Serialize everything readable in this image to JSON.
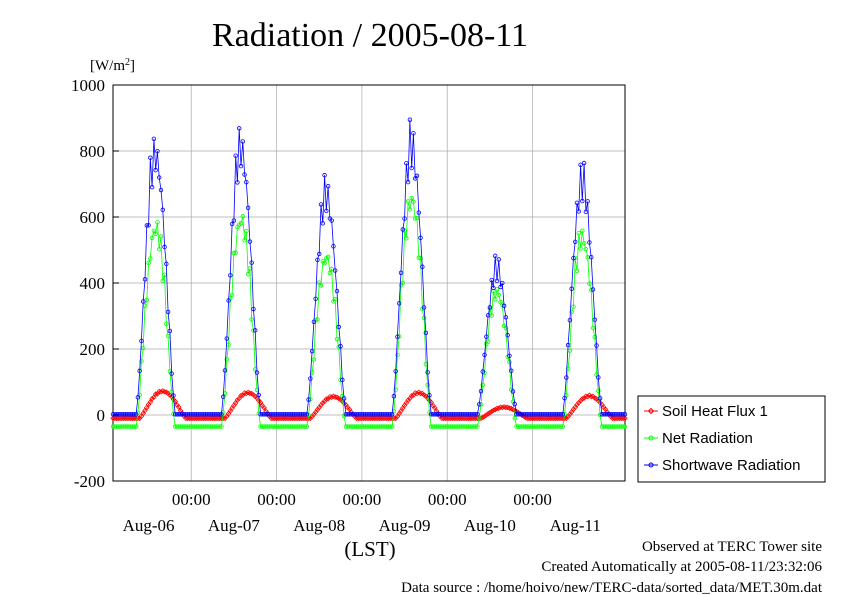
{
  "chart_data": {
    "type": "line",
    "title": "Radiation / 2005-08-11",
    "ylabel_unit_base": "[W/m",
    "ylabel_unit_sup": "2",
    "ylabel_unit_end": "]",
    "xlabel": "(LST)",
    "ylim": [
      -200,
      1000
    ],
    "yticks": [
      -200,
      0,
      200,
      400,
      600,
      800,
      1000
    ],
    "xlim_hours": [
      0,
      144
    ],
    "x_time_labels": [
      "00:00",
      "00:00",
      "00:00",
      "00:00",
      "00:00"
    ],
    "x_day_labels": [
      "Aug-06",
      "Aug-07",
      "Aug-08",
      "Aug-09",
      "Aug-10",
      "Aug-11"
    ],
    "grid": true,
    "legend_position": "right",
    "series": [
      {
        "name": "Soil Heat Flux 1",
        "color": "#ff0000",
        "marker": "diamond",
        "peaks": [
          [
            14,
            75
          ],
          [
            38,
            70
          ],
          [
            62,
            58
          ],
          [
            86,
            70
          ],
          [
            110,
            25
          ],
          [
            134,
            60
          ]
        ],
        "night_base": -10
      },
      {
        "name": "Net Radiation",
        "color": "#00ff00",
        "marker": "circle",
        "peaks": [
          [
            12,
            650
          ],
          [
            36,
            680
          ],
          [
            60,
            550
          ],
          [
            84,
            750
          ],
          [
            108,
            430
          ],
          [
            132,
            620
          ]
        ],
        "night_base": -35
      },
      {
        "name": "Shortwave Radiation",
        "color": "#0000ff",
        "marker": "circle",
        "peaks": [
          [
            12,
            890
          ],
          [
            36,
            910
          ],
          [
            60,
            750
          ],
          [
            84,
            910
          ],
          [
            108,
            495
          ],
          [
            132,
            790
          ]
        ],
        "night_base": 2
      }
    ]
  },
  "footer": {
    "line1": "Observed at TERC Tower site",
    "line2": "Created Automatically at 2005-08-11/23:32:06",
    "line3": "Data source : /home/hoivo/new/TERC-data/sorted_data/MET.30m.dat"
  }
}
